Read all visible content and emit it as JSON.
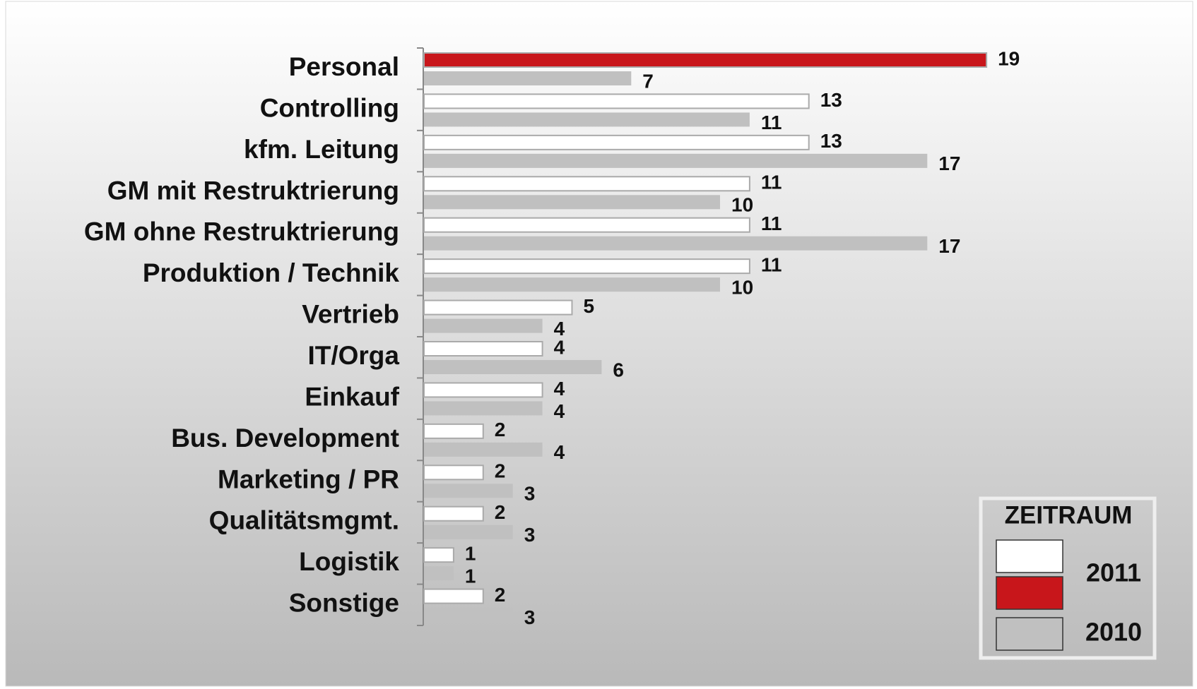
{
  "chart_data": {
    "type": "bar",
    "orientation": "horizontal",
    "categories": [
      "Personal",
      "Controlling",
      "kfm. Leitung",
      "GM mit Restruktrierung",
      "GM ohne Restruktrierung",
      "Produktion / Technik",
      "Vertrieb",
      "IT/Orga",
      "Einkauf",
      "Bus. Development",
      "Marketing  / PR",
      "Qualitätsmgmt.",
      "Logistik",
      "Sonstige"
    ],
    "series": [
      {
        "name": "2011",
        "color": "#ffffff",
        "colors": [
          "#c8161b",
          "#ffffff",
          "#ffffff",
          "#ffffff",
          "#ffffff",
          "#ffffff",
          "#ffffff",
          "#ffffff",
          "#ffffff",
          "#ffffff",
          "#ffffff",
          "#ffffff",
          "#ffffff",
          "#ffffff"
        ],
        "values": [
          19,
          13,
          13,
          11,
          11,
          11,
          5,
          4,
          4,
          2,
          2,
          2,
          1,
          2
        ]
      },
      {
        "name": "2010",
        "color": "#c0c0c0",
        "values": [
          7,
          11,
          17,
          10,
          17,
          10,
          4,
          6,
          4,
          4,
          3,
          3,
          1,
          3
        ]
      }
    ],
    "legend_title": "ZEITRAUM",
    "legend": "bottom-right",
    "xlim": [
      0,
      20
    ]
  }
}
